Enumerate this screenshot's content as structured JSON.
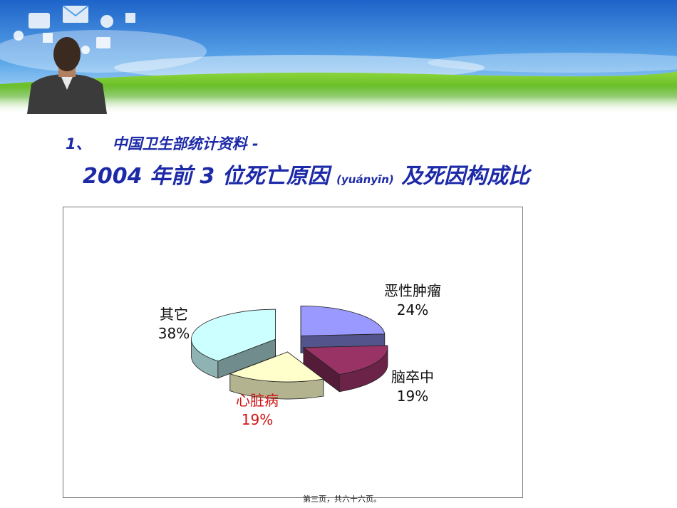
{
  "header": {
    "title_line1_num": "1、",
    "title_line1": "中国卫生部统计资料 -",
    "title_line2_a": "2004 年前 3 位死亡原因",
    "title_line2_pinyin": "(yuányīn)",
    "title_line2_b": "及死因构成比"
  },
  "chart_data": {
    "type": "pie",
    "style": "3d exploded",
    "slices": [
      {
        "name": "恶性肿瘤",
        "pct_label": "24%",
        "value": 24,
        "color": "#9999ff"
      },
      {
        "name": "脑卒中",
        "pct_label": "19%",
        "value": 19,
        "color": "#993366"
      },
      {
        "name": "心脏病",
        "pct_label": "19%",
        "value": 19,
        "color": "#ffffcc",
        "label_color": "#d11414"
      },
      {
        "name": "其它",
        "pct_label": "38%",
        "value": 38,
        "color": "#ccffff"
      }
    ]
  },
  "footer": {
    "page_text": "第三页，共六十六页。"
  }
}
